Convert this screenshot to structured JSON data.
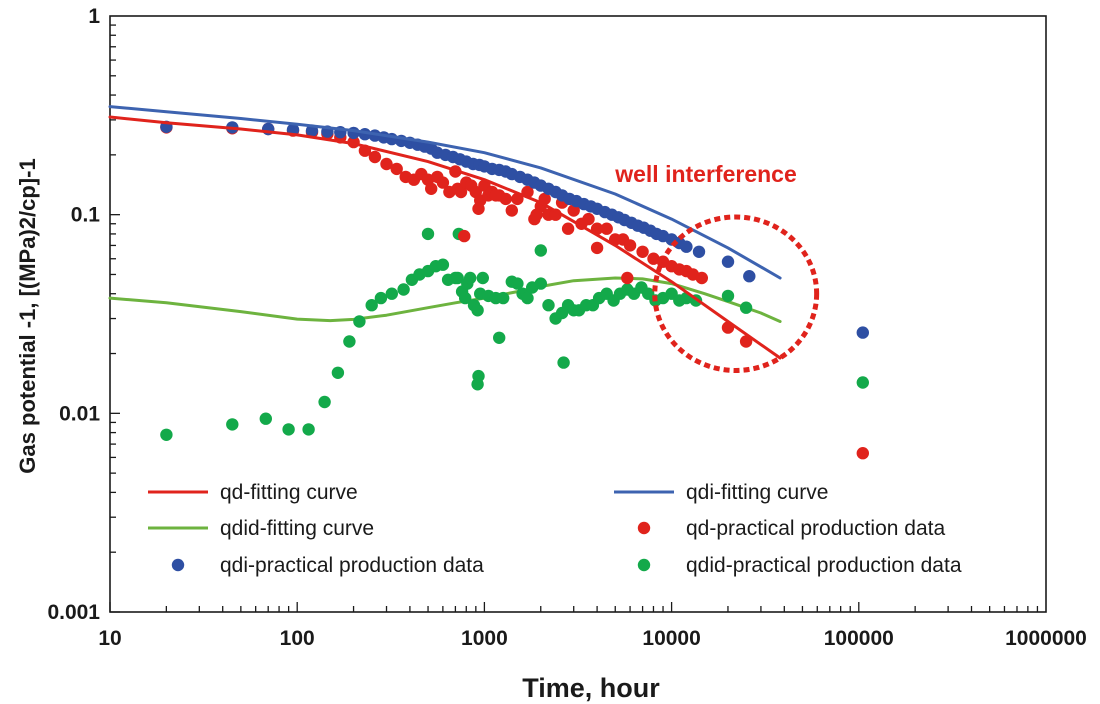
{
  "chart_data": {
    "type": "scatter",
    "title": "",
    "xlabel": "Time, hour",
    "ylabel": "Gas potential -1, [(MPa)2/cp]-1",
    "xscale": "log",
    "yscale": "log",
    "xlim": [
      10,
      1000000
    ],
    "ylim": [
      0.001,
      1
    ],
    "grid": false,
    "x_ticks": [
      {
        "value": 10,
        "label": "10"
      },
      {
        "value": 100,
        "label": "100"
      },
      {
        "value": 1000,
        "label": "1000"
      },
      {
        "value": 10000,
        "label": "10000"
      },
      {
        "value": 100000,
        "label": "100000"
      },
      {
        "value": 1000000,
        "label": "1000000"
      }
    ],
    "y_ticks": [
      {
        "value": 1,
        "label": "1"
      },
      {
        "value": 0.1,
        "label": "0.1"
      },
      {
        "value": 0.01,
        "label": "0.01"
      },
      {
        "value": 0.001,
        "label": "0.001"
      }
    ],
    "annotation": {
      "text": "well interference",
      "color": "#e0231c",
      "anchor": {
        "x": 5000,
        "y": 0.16
      },
      "circle_center": {
        "x": 22000,
        "y": 0.04
      },
      "circle_radius_decades": 0.46
    },
    "legend_position": "lower-left",
    "series": [
      {
        "name": "qd-fitting curve",
        "kind": "line",
        "color": "#e0231c",
        "x": [
          10,
          20,
          50,
          100,
          200,
          500,
          1000,
          2000,
          5000,
          10000,
          20000,
          38000
        ],
        "y": [
          0.31,
          0.29,
          0.27,
          0.252,
          0.228,
          0.185,
          0.15,
          0.115,
          0.07,
          0.046,
          0.029,
          0.019
        ]
      },
      {
        "name": "qdi-fitting curve",
        "kind": "line",
        "color": "#3d63b0",
        "x": [
          10,
          20,
          50,
          100,
          200,
          500,
          1000,
          2000,
          5000,
          10000,
          20000,
          38000
        ],
        "y": [
          0.35,
          0.33,
          0.305,
          0.285,
          0.265,
          0.232,
          0.205,
          0.172,
          0.127,
          0.095,
          0.068,
          0.048
        ]
      },
      {
        "name": "qdid-fitting curve",
        "kind": "line",
        "color": "#6db33f",
        "x": [
          10,
          20,
          50,
          100,
          150,
          200,
          300,
          500,
          700,
          1000,
          1500,
          2000,
          3000,
          5000,
          7000,
          10000,
          15000,
          20000,
          30000,
          38000
        ],
        "y": [
          0.038,
          0.036,
          0.0325,
          0.0298,
          0.0293,
          0.0297,
          0.0312,
          0.034,
          0.036,
          0.038,
          0.041,
          0.0435,
          0.0465,
          0.048,
          0.0475,
          0.045,
          0.04,
          0.0365,
          0.032,
          0.029
        ]
      },
      {
        "name": "qd-practical production data",
        "kind": "scatter",
        "color": "#e0231c",
        "x": [
          20,
          45,
          70,
          95,
          120,
          145,
          170,
          200,
          230,
          260,
          300,
          340,
          380,
          420,
          460,
          500,
          520,
          560,
          600,
          650,
          700,
          720,
          750,
          800,
          850,
          900,
          950,
          1000,
          1050,
          1100,
          1200,
          1300,
          1400,
          1500,
          1700,
          1850,
          2000,
          2200,
          2400,
          2600,
          2800,
          3000,
          3300,
          3600,
          4000,
          4500,
          5000,
          5500,
          6000,
          7000,
          8000,
          9000,
          10000,
          11000,
          12000,
          13000,
          14500,
          780,
          930,
          1150,
          1900,
          2100,
          4000,
          5800,
          20000,
          25000,
          105000
        ],
        "y": [
          0.275,
          0.272,
          0.27,
          0.265,
          0.26,
          0.255,
          0.245,
          0.232,
          0.21,
          0.195,
          0.18,
          0.17,
          0.155,
          0.15,
          0.16,
          0.15,
          0.135,
          0.155,
          0.145,
          0.13,
          0.165,
          0.135,
          0.13,
          0.145,
          0.14,
          0.13,
          0.118,
          0.14,
          0.125,
          0.13,
          0.125,
          0.12,
          0.105,
          0.12,
          0.13,
          0.095,
          0.11,
          0.1,
          0.1,
          0.115,
          0.085,
          0.105,
          0.09,
          0.095,
          0.085,
          0.085,
          0.075,
          0.075,
          0.07,
          0.065,
          0.06,
          0.058,
          0.055,
          0.053,
          0.052,
          0.05,
          0.048,
          0.078,
          0.107,
          0.125,
          0.1,
          0.12,
          0.068,
          0.048,
          0.027,
          0.023,
          0.0063
        ]
      },
      {
        "name": "qdi-practical production data",
        "kind": "scatter",
        "color": "#2e4fa3",
        "x": [
          20,
          45,
          70,
          95,
          120,
          145,
          170,
          200,
          230,
          260,
          290,
          320,
          360,
          400,
          440,
          480,
          520,
          560,
          620,
          680,
          740,
          800,
          870,
          940,
          1000,
          1100,
          1200,
          1300,
          1400,
          1550,
          1700,
          1850,
          2000,
          2200,
          2400,
          2600,
          2850,
          3100,
          3400,
          3700,
          4000,
          4400,
          4800,
          5200,
          5600,
          6100,
          6600,
          7100,
          7700,
          8300,
          9000,
          10000,
          11000,
          12000,
          14000,
          20000,
          26000,
          105000
        ],
        "y": [
          0.277,
          0.275,
          0.27,
          0.268,
          0.265,
          0.262,
          0.26,
          0.258,
          0.254,
          0.25,
          0.245,
          0.24,
          0.235,
          0.23,
          0.225,
          0.22,
          0.215,
          0.205,
          0.2,
          0.195,
          0.19,
          0.185,
          0.18,
          0.178,
          0.175,
          0.17,
          0.168,
          0.165,
          0.16,
          0.155,
          0.15,
          0.145,
          0.14,
          0.135,
          0.13,
          0.125,
          0.12,
          0.117,
          0.113,
          0.11,
          0.107,
          0.103,
          0.1,
          0.097,
          0.094,
          0.091,
          0.088,
          0.086,
          0.083,
          0.08,
          0.078,
          0.075,
          0.072,
          0.069,
          0.065,
          0.058,
          0.049,
          0.0255
        ]
      },
      {
        "name": "qdid-practical production data",
        "kind": "scatter",
        "color": "#13a94a",
        "x": [
          20,
          45,
          68,
          90,
          115,
          140,
          165,
          190,
          215,
          250,
          280,
          320,
          370,
          410,
          450,
          500,
          550,
          600,
          640,
          700,
          720,
          760,
          790,
          810,
          840,
          880,
          920,
          950,
          980,
          1050,
          1150,
          1260,
          1400,
          1500,
          1600,
          1700,
          1800,
          2000,
          2200,
          2400,
          2600,
          2800,
          3000,
          3200,
          3500,
          3800,
          4100,
          4500,
          4900,
          5300,
          5800,
          6300,
          6900,
          7500,
          8200,
          9000,
          10000,
          11000,
          12000,
          13500,
          20000,
          25000,
          105000,
          500,
          730,
          920,
          1200,
          2000,
          2650,
          930
        ],
        "y": [
          0.0078,
          0.0088,
          0.0094,
          0.0083,
          0.0083,
          0.0114,
          0.016,
          0.023,
          0.029,
          0.035,
          0.038,
          0.04,
          0.042,
          0.047,
          0.05,
          0.052,
          0.055,
          0.056,
          0.047,
          0.048,
          0.048,
          0.041,
          0.038,
          0.045,
          0.048,
          0.035,
          0.033,
          0.04,
          0.048,
          0.039,
          0.038,
          0.038,
          0.046,
          0.045,
          0.04,
          0.038,
          0.043,
          0.045,
          0.035,
          0.03,
          0.032,
          0.035,
          0.033,
          0.033,
          0.035,
          0.035,
          0.038,
          0.04,
          0.037,
          0.04,
          0.042,
          0.04,
          0.043,
          0.04,
          0.037,
          0.038,
          0.04,
          0.037,
          0.038,
          0.037,
          0.039,
          0.034,
          0.0143,
          0.08,
          0.08,
          0.014,
          0.024,
          0.066,
          0.018,
          0.0154
        ]
      }
    ],
    "legend": [
      {
        "series": "qd-fitting curve",
        "label": "qd-fitting curve"
      },
      {
        "series": "qdi-fitting curve",
        "label": "qdi-fitting curve"
      },
      {
        "series": "qdid-fitting curve",
        "label": "qdid-fitting curve"
      },
      {
        "series": "qd-practical production data",
        "label": "qd-practical production data"
      },
      {
        "series": "qdi-practical production data",
        "label": "qdi-practical production data"
      },
      {
        "series": "qdid-practical production data",
        "label": "qdid-practical production data"
      }
    ]
  }
}
